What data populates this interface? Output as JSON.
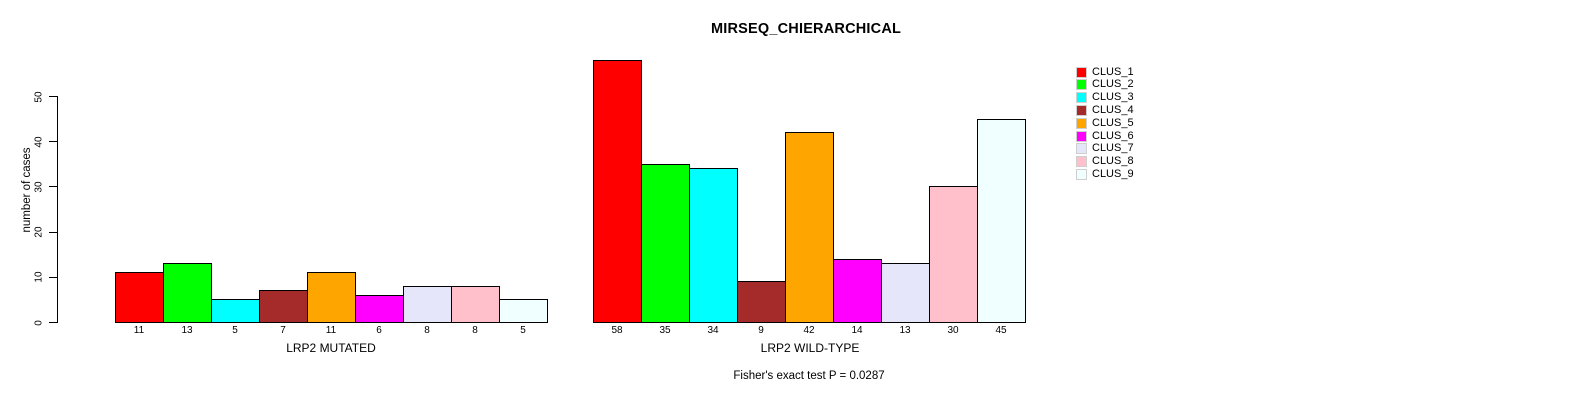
{
  "title": "MIRSEQ_CHIERARCHICAL",
  "ylabel": "number of cases",
  "footer": "Fisher's exact test P = 0.0287",
  "palette": [
    "#FF0000",
    "#00FF00",
    "#00FFFF",
    "#A52A2A",
    "#FFA500",
    "#FF00FF",
    "#E6E6FA",
    "#FFC0CB",
    "#F0FFFF"
  ],
  "legend": {
    "items": [
      {
        "label": "CLUS_1",
        "color": "#FF0000"
      },
      {
        "label": "CLUS_2",
        "color": "#00FF00"
      },
      {
        "label": "CLUS_3",
        "color": "#00FFFF"
      },
      {
        "label": "CLUS_4",
        "color": "#A52A2A"
      },
      {
        "label": "CLUS_5",
        "color": "#FFA500"
      },
      {
        "label": "CLUS_6",
        "color": "#FF00FF"
      },
      {
        "label": "CLUS_7",
        "color": "#E6E6FA"
      },
      {
        "label": "CLUS_8",
        "color": "#FFC0CB"
      },
      {
        "label": "CLUS_9",
        "color": "#F0FFFF"
      }
    ]
  },
  "chart_data": [
    {
      "type": "bar",
      "title": "MIRSEQ_CHIERARCHICAL",
      "xlabel": "LRP2 MUTATED",
      "ylabel": "number of cases",
      "categories": [
        "CLUS_1",
        "CLUS_2",
        "CLUS_3",
        "CLUS_4",
        "CLUS_5",
        "CLUS_6",
        "CLUS_7",
        "CLUS_8",
        "CLUS_9"
      ],
      "values": [
        11,
        13,
        5,
        7,
        11,
        6,
        8,
        8,
        5
      ],
      "bar_labels": [
        "11",
        "13",
        "5",
        "7",
        "11",
        "6",
        "8",
        "8",
        "5"
      ],
      "colors": [
        "#FF0000",
        "#00FF00",
        "#00FFFF",
        "#A52A2A",
        "#FFA500",
        "#FF00FF",
        "#E6E6FA",
        "#FFC0CB",
        "#F0FFFF"
      ],
      "ylim": [
        0,
        50
      ],
      "yticks": [
        0,
        10,
        20,
        30,
        40,
        50
      ],
      "grid": false,
      "legend_position": "right"
    },
    {
      "type": "bar",
      "title": "MIRSEQ_CHIERARCHICAL",
      "xlabel": "LRP2 WILD-TYPE",
      "ylabel": "number of cases",
      "categories": [
        "CLUS_1",
        "CLUS_2",
        "CLUS_3",
        "CLUS_4",
        "CLUS_5",
        "CLUS_6",
        "CLUS_7",
        "CLUS_8",
        "CLUS_9"
      ],
      "values": [
        58,
        35,
        34,
        9,
        42,
        14,
        13,
        30,
        45
      ],
      "bar_labels": [
        "58",
        "35",
        "34",
        "9",
        "42",
        "14",
        "13",
        "30",
        "45"
      ],
      "colors": [
        "#FF0000",
        "#00FF00",
        "#00FFFF",
        "#A52A2A",
        "#FFA500",
        "#FF00FF",
        "#E6E6FA",
        "#FFC0CB",
        "#F0FFFF"
      ],
      "ylim": [
        0,
        50
      ],
      "yticks": [
        0,
        10,
        20,
        30,
        40,
        50
      ],
      "grid": false,
      "legend_position": "right"
    }
  ]
}
